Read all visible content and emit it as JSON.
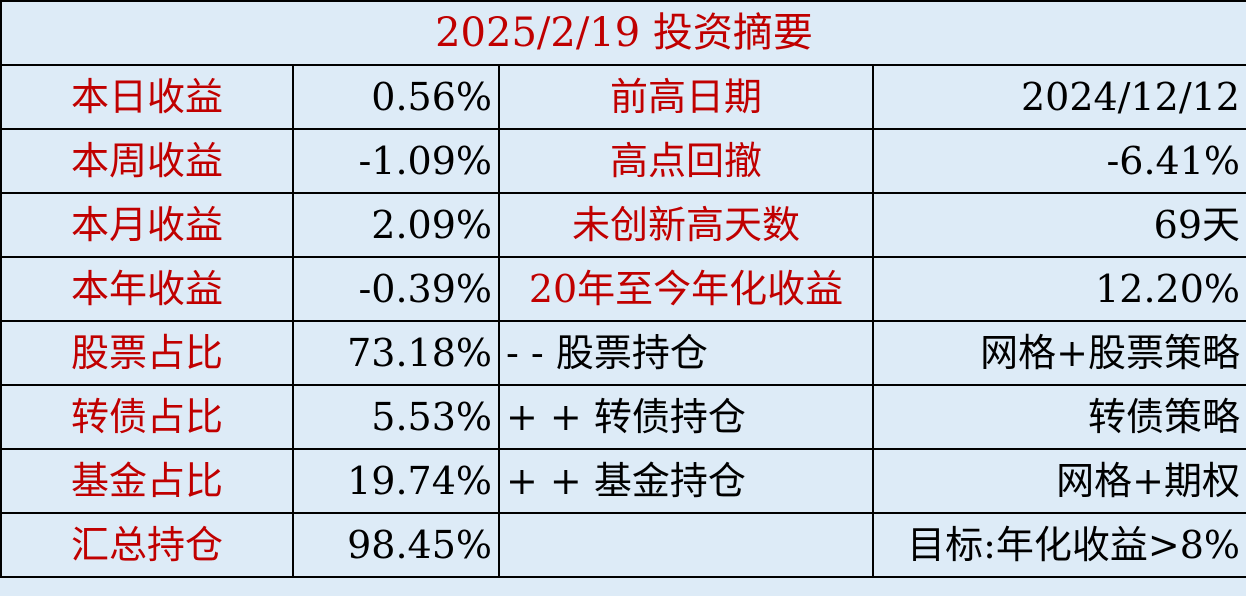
{
  "title": "2025/2/19 投资摘要",
  "colors": {
    "label": "#c00000",
    "background": "#ddebf7",
    "value": "#000000"
  },
  "rows": [
    {
      "label1": "本日收益",
      "value1": "0.56%",
      "label2": "前高日期",
      "value2": "2024/12/12"
    },
    {
      "label1": "本周收益",
      "value1": "-1.09%",
      "label2": "高点回撤",
      "value2": "-6.41%"
    },
    {
      "label1": "本月收益",
      "value1": "2.09%",
      "label2": "未创新高天数",
      "value2": "69天"
    },
    {
      "label1": "本年收益",
      "value1": "-0.39%",
      "label2": "20年至今年化收益",
      "value2": "12.20%"
    },
    {
      "label1": "股票占比",
      "value1": "73.18%",
      "label2": "- - 股票持仓",
      "value2": "网格+股票策略"
    },
    {
      "label1": "转债占比",
      "value1": "5.53%",
      "label2": "+ + 转债持仓",
      "value2": "转债策略"
    },
    {
      "label1": "基金占比",
      "value1": "19.74%",
      "label2": "+ + 基金持仓",
      "value2": "网格+期权"
    },
    {
      "label1": "汇总持仓",
      "value1": "98.45%",
      "label2": "",
      "value2": "目标:年化收益>8%"
    }
  ]
}
